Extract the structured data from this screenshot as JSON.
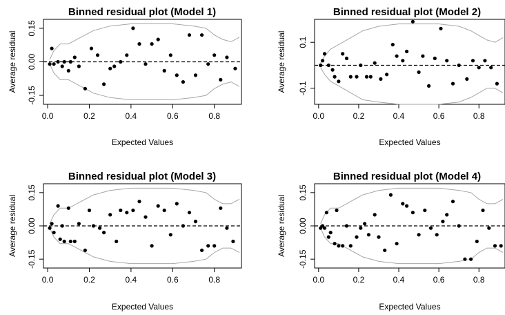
{
  "chart_data": [
    {
      "type": "scatter",
      "title": "Binned residual plot (Model 1)",
      "xlabel": "Expected Values",
      "ylabel": "Average residual",
      "xlim": [
        -0.02,
        0.93
      ],
      "ylim": [
        -0.19,
        0.19
      ],
      "xticks": [
        "0.0",
        "0.2",
        "0.4",
        "0.6",
        "0.8"
      ],
      "yticks": [
        "-0.15",
        "0.00",
        "0.15"
      ],
      "hline": 0,
      "points": {
        "x": [
          0.01,
          0.02,
          0.03,
          0.05,
          0.07,
          0.08,
          0.1,
          0.11,
          0.13,
          0.15,
          0.18,
          0.21,
          0.24,
          0.27,
          0.3,
          0.32,
          0.35,
          0.38,
          0.41,
          0.44,
          0.47,
          0.5,
          0.53,
          0.56,
          0.59,
          0.62,
          0.65,
          0.68,
          0.71,
          0.74,
          0.77,
          0.8,
          0.83,
          0.86,
          0.9
        ],
        "y": [
          -0.01,
          0.06,
          -0.01,
          0.0,
          -0.02,
          0.0,
          -0.04,
          0.0,
          0.02,
          -0.02,
          -0.12,
          0.06,
          0.03,
          -0.1,
          -0.03,
          -0.02,
          0.0,
          0.03,
          0.15,
          0.08,
          -0.01,
          0.08,
          0.1,
          -0.04,
          0.03,
          -0.06,
          -0.09,
          0.12,
          -0.06,
          0.12,
          -0.01,
          0.03,
          -0.08,
          0.02,
          -0.03
        ]
      },
      "bounds": {
        "x": [
          0.01,
          0.03,
          0.06,
          0.1,
          0.14,
          0.18,
          0.22,
          0.3,
          0.4,
          0.5,
          0.6,
          0.7,
          0.76,
          0.8,
          0.84,
          0.88,
          0.92
        ],
        "upper": [
          0.01,
          0.05,
          0.08,
          0.08,
          0.1,
          0.12,
          0.14,
          0.16,
          0.17,
          0.17,
          0.17,
          0.16,
          0.15,
          0.12,
          0.1,
          0.09,
          0.11
        ],
        "lower": [
          -0.01,
          -0.05,
          -0.08,
          -0.08,
          -0.1,
          -0.12,
          -0.14,
          -0.16,
          -0.17,
          -0.17,
          -0.17,
          -0.16,
          -0.15,
          -0.12,
          -0.1,
          -0.09,
          -0.11
        ]
      }
    },
    {
      "type": "scatter",
      "title": "Binned residual plot (Model 2)",
      "xlabel": "Expected Values",
      "ylabel": "Average residual",
      "xlim": [
        -0.02,
        0.93
      ],
      "ylim": [
        -0.17,
        0.2
      ],
      "xticks": [
        "0.0",
        "0.2",
        "0.4",
        "0.6",
        "0.8"
      ],
      "yticks": [
        "-0.1",
        "0.1"
      ],
      "hline": 0,
      "points": {
        "x": [
          0.01,
          0.02,
          0.03,
          0.05,
          0.07,
          0.08,
          0.1,
          0.12,
          0.14,
          0.16,
          0.19,
          0.21,
          0.24,
          0.26,
          0.28,
          0.31,
          0.34,
          0.37,
          0.39,
          0.42,
          0.44,
          0.47,
          0.5,
          0.52,
          0.55,
          0.58,
          0.61,
          0.64,
          0.67,
          0.7,
          0.74,
          0.77,
          0.8,
          0.83,
          0.86,
          0.89
        ],
        "y": [
          0.0,
          0.02,
          0.05,
          0.0,
          -0.02,
          -0.05,
          -0.07,
          0.05,
          0.03,
          -0.05,
          -0.05,
          0.0,
          -0.05,
          -0.05,
          0.01,
          -0.06,
          -0.04,
          0.09,
          0.04,
          0.02,
          0.06,
          0.19,
          -0.03,
          0.04,
          -0.09,
          0.03,
          0.16,
          0.02,
          -0.08,
          0.0,
          -0.06,
          0.02,
          -0.01,
          0.02,
          -0.01,
          -0.08
        ]
      },
      "bounds": {
        "x": [
          0.01,
          0.03,
          0.06,
          0.1,
          0.14,
          0.18,
          0.22,
          0.3,
          0.4,
          0.5,
          0.6,
          0.7,
          0.76,
          0.8,
          0.84,
          0.88,
          0.92
        ],
        "upper": [
          0.01,
          0.04,
          0.07,
          0.09,
          0.11,
          0.13,
          0.15,
          0.17,
          0.18,
          0.18,
          0.18,
          0.17,
          0.15,
          0.13,
          0.11,
          0.1,
          0.12
        ],
        "lower": [
          -0.01,
          -0.04,
          -0.07,
          -0.09,
          -0.11,
          -0.13,
          -0.15,
          -0.16,
          -0.17,
          -0.17,
          -0.17,
          -0.16,
          -0.14,
          -0.12,
          -0.1,
          -0.1,
          -0.12
        ]
      }
    },
    {
      "type": "scatter",
      "title": "Binned residual plot (Model 3)",
      "xlabel": "Expected Values",
      "ylabel": "Average residual",
      "xlim": [
        -0.02,
        0.93
      ],
      "ylim": [
        -0.19,
        0.19
      ],
      "xticks": [
        "0.0",
        "0.2",
        "0.4",
        "0.6",
        "0.8"
      ],
      "yticks": [
        "-0.15",
        "0.00",
        "0.15"
      ],
      "hline": 0,
      "points": {
        "x": [
          0.01,
          0.02,
          0.03,
          0.05,
          0.06,
          0.07,
          0.08,
          0.1,
          0.11,
          0.13,
          0.15,
          0.18,
          0.2,
          0.22,
          0.25,
          0.27,
          0.3,
          0.33,
          0.35,
          0.38,
          0.41,
          0.44,
          0.47,
          0.5,
          0.53,
          0.56,
          0.59,
          0.62,
          0.65,
          0.68,
          0.71,
          0.74,
          0.77,
          0.8,
          0.83,
          0.86,
          0.89
        ],
        "y": [
          -0.01,
          0.01,
          -0.03,
          0.09,
          -0.06,
          0.0,
          -0.07,
          0.08,
          -0.07,
          -0.07,
          0.01,
          -0.11,
          0.07,
          0.0,
          -0.01,
          -0.03,
          0.05,
          -0.07,
          0.07,
          0.06,
          0.07,
          0.11,
          0.04,
          -0.09,
          0.09,
          0.07,
          -0.04,
          0.1,
          0.0,
          0.06,
          0.02,
          -0.11,
          -0.09,
          -0.09,
          0.08,
          -0.01,
          -0.07
        ]
      },
      "bounds": {
        "x": [
          0.01,
          0.03,
          0.06,
          0.1,
          0.14,
          0.18,
          0.22,
          0.3,
          0.4,
          0.5,
          0.6,
          0.7,
          0.76,
          0.8,
          0.84,
          0.88,
          0.92
        ],
        "upper": [
          0.01,
          0.05,
          0.08,
          0.08,
          0.1,
          0.12,
          0.14,
          0.16,
          0.17,
          0.17,
          0.17,
          0.16,
          0.15,
          0.12,
          0.1,
          0.1,
          0.12
        ],
        "lower": [
          -0.01,
          -0.05,
          -0.08,
          -0.08,
          -0.1,
          -0.12,
          -0.14,
          -0.16,
          -0.17,
          -0.17,
          -0.17,
          -0.16,
          -0.15,
          -0.12,
          -0.1,
          -0.1,
          -0.12
        ]
      }
    },
    {
      "type": "scatter",
      "title": "Binned residual plot (Model 4)",
      "xlabel": "Expected Values",
      "ylabel": "Average residual",
      "xlim": [
        -0.02,
        0.93
      ],
      "ylim": [
        -0.19,
        0.19
      ],
      "xticks": [
        "0.0",
        "0.2",
        "0.4",
        "0.6",
        "0.8"
      ],
      "yticks": [
        "-0.15",
        "0.00",
        "0.15"
      ],
      "hline": 0,
      "points": {
        "x": [
          0.01,
          0.02,
          0.03,
          0.04,
          0.05,
          0.06,
          0.08,
          0.09,
          0.1,
          0.12,
          0.14,
          0.16,
          0.19,
          0.21,
          0.23,
          0.25,
          0.28,
          0.3,
          0.33,
          0.36,
          0.39,
          0.42,
          0.44,
          0.47,
          0.5,
          0.53,
          0.56,
          0.59,
          0.62,
          0.64,
          0.67,
          0.7,
          0.73,
          0.76,
          0.79,
          0.82,
          0.85,
          0.88,
          0.91
        ],
        "y": [
          -0.01,
          0.0,
          -0.01,
          0.06,
          -0.05,
          -0.03,
          -0.08,
          0.07,
          -0.09,
          -0.09,
          0.0,
          -0.09,
          -0.05,
          -0.01,
          0.01,
          -0.04,
          0.05,
          -0.05,
          -0.11,
          0.14,
          -0.08,
          0.1,
          0.09,
          0.06,
          -0.04,
          0.07,
          -0.01,
          -0.04,
          0.02,
          0.05,
          0.11,
          0.0,
          -0.15,
          -0.15,
          -0.07,
          0.07,
          -0.01,
          -0.09,
          -0.09
        ]
      },
      "bounds": {
        "x": [
          0.01,
          0.03,
          0.06,
          0.1,
          0.14,
          0.18,
          0.22,
          0.3,
          0.4,
          0.5,
          0.6,
          0.7,
          0.76,
          0.8,
          0.84,
          0.88,
          0.92
        ],
        "upper": [
          0.01,
          0.05,
          0.08,
          0.08,
          0.1,
          0.12,
          0.14,
          0.16,
          0.17,
          0.17,
          0.17,
          0.16,
          0.15,
          0.12,
          0.1,
          0.1,
          0.12
        ],
        "lower": [
          -0.01,
          -0.05,
          -0.08,
          -0.08,
          -0.1,
          -0.12,
          -0.14,
          -0.16,
          -0.17,
          -0.17,
          -0.17,
          -0.16,
          -0.15,
          -0.12,
          -0.1,
          -0.1,
          -0.12
        ]
      }
    }
  ],
  "style": {
    "point_color": "#000000",
    "bound_color": "#a6a6a6",
    "frame_color": "#000000",
    "zero_line": "dashed"
  }
}
